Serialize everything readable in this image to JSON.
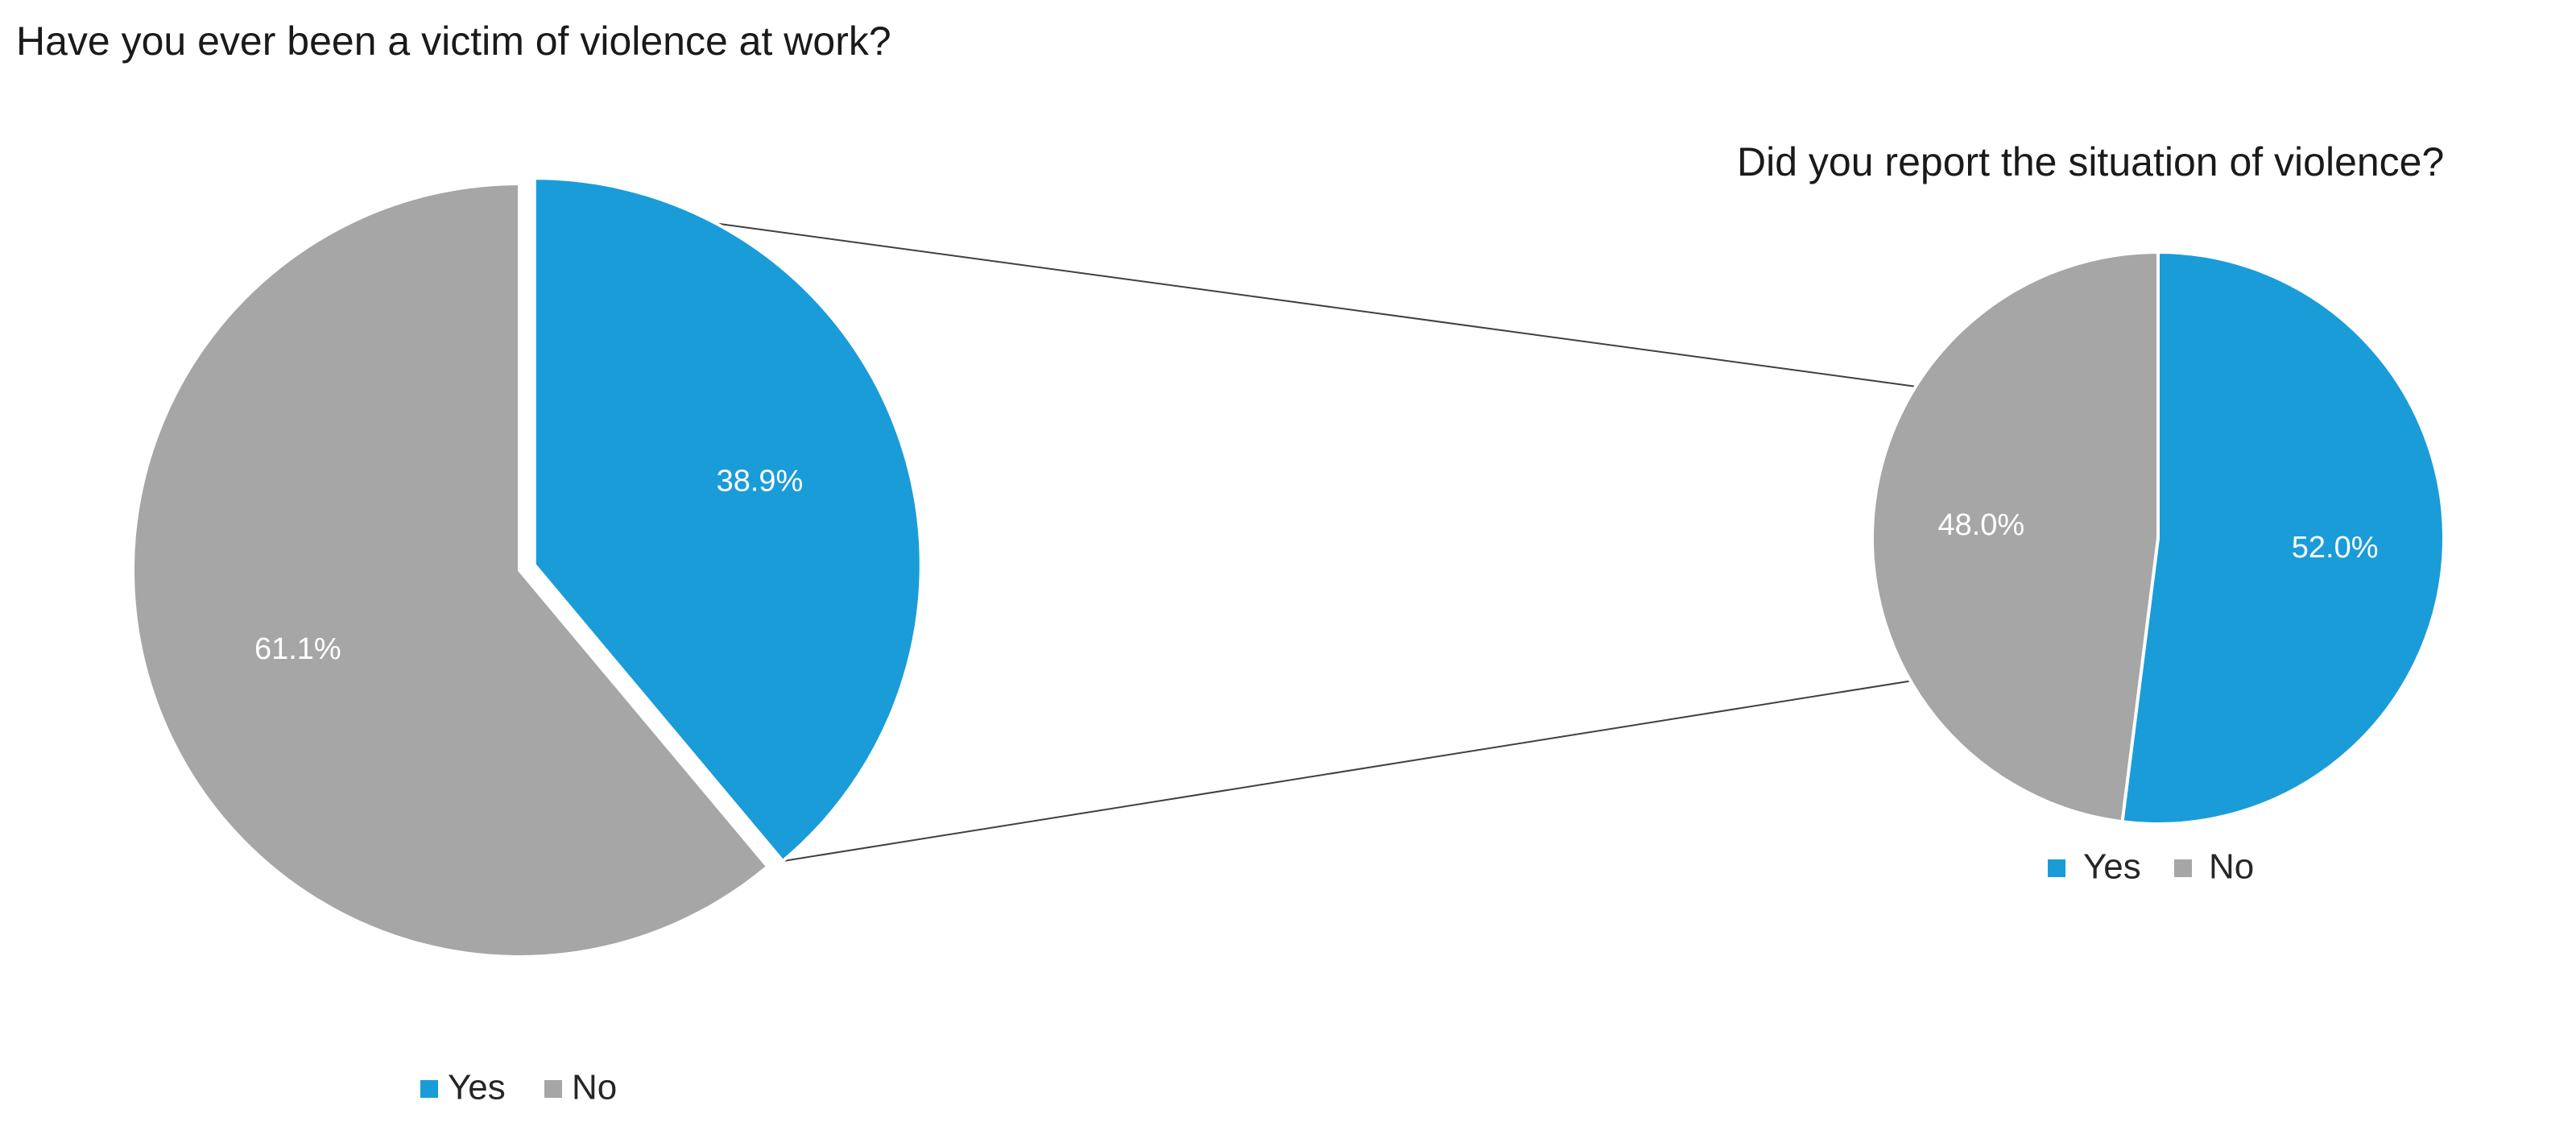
{
  "chart_data": [
    {
      "type": "pie",
      "title": "Have you ever been a victim of violence at work?",
      "series": [
        {
          "label": "Yes",
          "value": 38.9,
          "value_label": "38.9%",
          "color": "#1a9cd9",
          "exploded": true
        },
        {
          "label": "No",
          "value": 61.1,
          "value_label": "61.1%",
          "color": "#a6a6a6"
        }
      ],
      "legend": {
        "position": "bottom",
        "items": [
          "Yes",
          "No"
        ]
      }
    },
    {
      "type": "pie",
      "title": "Did you report the situation of violence?",
      "series": [
        {
          "label": "Yes",
          "value": 52.0,
          "value_label": "52.0%",
          "color": "#1a9cd9"
        },
        {
          "label": "No",
          "value": 48.0,
          "value_label": "48.0%",
          "color": "#a6a6a6"
        }
      ],
      "legend": {
        "position": "bottom",
        "items": [
          "Yes",
          "No"
        ]
      }
    }
  ],
  "colors": {
    "yes": "#1a9cd9",
    "no": "#a6a6a6",
    "connector": "#404040"
  }
}
